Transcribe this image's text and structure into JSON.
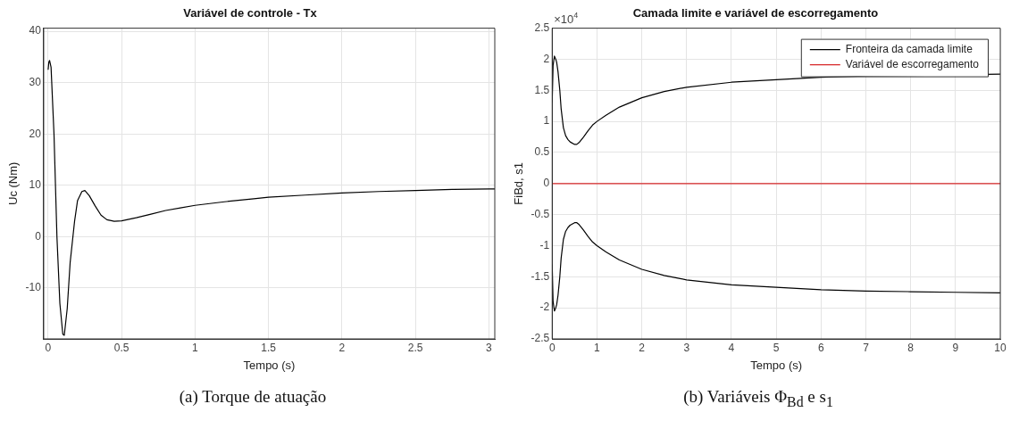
{
  "chart_data": [
    {
      "type": "line",
      "title": "Variável de controle - Tx",
      "xlabel": "Tempo (s)",
      "ylabel": "Uc (Nm)",
      "series": [
        {
          "color": "#000000",
          "x": [
            0,
            0.005,
            0.01,
            0.02,
            0.04,
            0.06,
            0.08,
            0.1,
            0.11,
            0.13,
            0.15,
            0.18,
            0.2,
            0.23,
            0.25,
            0.28,
            0.32,
            0.36,
            0.4,
            0.45,
            0.5,
            0.6,
            0.7,
            0.8,
            0.9,
            1,
            1.2,
            1.4,
            1.5,
            1.75,
            2,
            2.25,
            2.5,
            2.75,
            3,
            3.04
          ],
          "values": [
            32.5,
            34,
            34.3,
            33,
            20,
            0,
            -13,
            -19,
            -19.2,
            -14,
            -5,
            3,
            7,
            8.8,
            9,
            8,
            6,
            4.2,
            3.3,
            3,
            3.1,
            3.7,
            4.4,
            5.1,
            5.6,
            6.1,
            6.8,
            7.4,
            7.7,
            8.1,
            8.5,
            8.8,
            9,
            9.2,
            9.3,
            9.3
          ]
        }
      ],
      "xlim": [
        -0.03,
        3.04
      ],
      "xticks": [
        0,
        0.5,
        1,
        1.5,
        2,
        2.5,
        3
      ],
      "ylim": [
        -19.9,
        40.6
      ],
      "yticks": [
        -10,
        0,
        10,
        20,
        30,
        40
      ],
      "grid": true,
      "line_style": "solid",
      "marker": "none",
      "annotations": [
        "(a) Torque de atuação"
      ]
    },
    {
      "type": "line",
      "title": "Camada limite e variável de escorregamento",
      "xlabel": "Tempo (s)",
      "ylabel": "FiBd, s1",
      "series": [
        {
          "name": "Fronteira da camada limite",
          "color": "#000000",
          "x": [
            0,
            0.02,
            0.05,
            0.08,
            0.1,
            0.13,
            0.17,
            0.2,
            0.25,
            0.3,
            0.35,
            0.4,
            0.5,
            0.55,
            0.6,
            0.7,
            0.8,
            0.9,
            1,
            1.2,
            1.5,
            2,
            2.5,
            3,
            4,
            5,
            6,
            7,
            8,
            9,
            10
          ],
          "values": [
            1.3,
            1.9,
            2.05,
            2,
            1.95,
            1.8,
            1.5,
            1.2,
            0.9,
            0.77,
            0.71,
            0.67,
            0.63,
            0.63,
            0.66,
            0.75,
            0.85,
            0.94,
            1,
            1.1,
            1.23,
            1.38,
            1.48,
            1.55,
            1.63,
            1.67,
            1.71,
            1.73,
            1.74,
            1.75,
            1.76
          ]
        },
        {
          "name": "Variável de escorregamento",
          "color": "#d62728",
          "x": [
            0,
            10
          ],
          "values": [
            0,
            0
          ]
        },
        {
          "color": "#000000",
          "x": [
            0,
            0.02,
            0.05,
            0.08,
            0.1,
            0.13,
            0.17,
            0.2,
            0.25,
            0.3,
            0.35,
            0.4,
            0.5,
            0.55,
            0.6,
            0.7,
            0.8,
            0.9,
            1,
            1.2,
            1.5,
            2,
            2.5,
            3,
            4,
            5,
            6,
            7,
            8,
            9,
            10
          ],
          "values": [
            -1.3,
            -1.9,
            -2.05,
            -2,
            -1.95,
            -1.8,
            -1.5,
            -1.2,
            -0.9,
            -0.77,
            -0.71,
            -0.67,
            -0.63,
            -0.63,
            -0.66,
            -0.75,
            -0.85,
            -0.94,
            -1,
            -1.1,
            -1.23,
            -1.38,
            -1.48,
            -1.55,
            -1.63,
            -1.67,
            -1.71,
            -1.73,
            -1.74,
            -1.75,
            -1.76
          ]
        }
      ],
      "xlim": [
        0,
        10
      ],
      "xticks": [
        0,
        1,
        2,
        3,
        4,
        5,
        6,
        7,
        8,
        9,
        10
      ],
      "ylim": [
        -2.5,
        2.5
      ],
      "yticks": [
        -2.5,
        -2,
        -1.5,
        -1,
        -0.5,
        0,
        0.5,
        1,
        1.5,
        2,
        2.5
      ],
      "grid": true,
      "legend": "top right",
      "line_style": "solid",
      "marker": "none",
      "annotations": [
        "×10$^{4}$",
        "(b) Variáveis Φ$_{Bd}$ e s$_{1}$"
      ]
    }
  ]
}
